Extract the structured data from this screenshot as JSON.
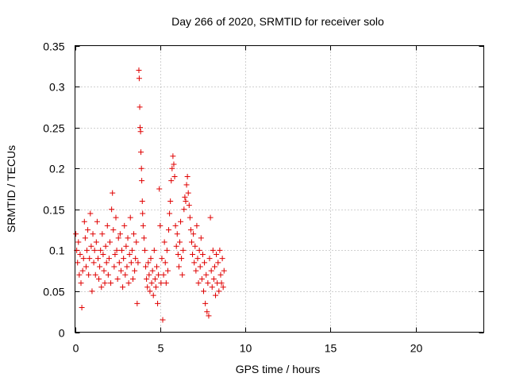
{
  "chart_data": {
    "type": "scatter",
    "title": "Day 266 of 2020, SRMTID for receiver solo",
    "xlabel": "GPS time / hours",
    "ylabel": "SRMTID / TECUs",
    "xlim": [
      0,
      24
    ],
    "ylim": [
      0,
      0.35
    ],
    "xticks": [
      0,
      5,
      10,
      15,
      20
    ],
    "xtick_labels": [
      "0",
      "5",
      "10",
      "15",
      "20"
    ],
    "yticks": [
      0,
      0.05,
      0.1,
      0.15,
      0.2,
      0.25,
      0.3,
      0.35
    ],
    "ytick_labels": [
      "0",
      "0.05",
      "0.1",
      "0.15",
      "0.2",
      "0.25",
      "0.3",
      "0.35"
    ],
    "grid": true,
    "marker": "+",
    "color": "#e00000",
    "series": [
      {
        "name": "SRMTID",
        "points": [
          [
            0.05,
            0.12
          ],
          [
            0.1,
            0.1
          ],
          [
            0.15,
            0.085
          ],
          [
            0.2,
            0.11
          ],
          [
            0.25,
            0.07
          ],
          [
            0.3,
            0.095
          ],
          [
            0.35,
            0.06
          ],
          [
            0.4,
            0.03
          ],
          [
            0.45,
            0.075
          ],
          [
            0.5,
            0.09
          ],
          [
            0.55,
            0.135
          ],
          [
            0.6,
            0.115
          ],
          [
            0.65,
            0.08
          ],
          [
            0.7,
            0.1
          ],
          [
            0.75,
            0.125
          ],
          [
            0.8,
            0.07
          ],
          [
            0.85,
            0.09
          ],
          [
            0.9,
            0.145
          ],
          [
            0.95,
            0.105
          ],
          [
            1.0,
            0.05
          ],
          [
            1.05,
            0.12
          ],
          [
            1.1,
            0.085
          ],
          [
            1.15,
            0.1
          ],
          [
            1.2,
            0.07
          ],
          [
            1.25,
            0.11
          ],
          [
            1.3,
            0.135
          ],
          [
            1.35,
            0.09
          ],
          [
            1.4,
            0.065
          ],
          [
            1.45,
            0.08
          ],
          [
            1.5,
            0.1
          ],
          [
            1.55,
            0.055
          ],
          [
            1.6,
            0.12
          ],
          [
            1.65,
            0.095
          ],
          [
            1.7,
            0.075
          ],
          [
            1.75,
            0.06
          ],
          [
            1.8,
            0.105
          ],
          [
            1.85,
            0.085
          ],
          [
            1.9,
            0.13
          ],
          [
            1.95,
            0.07
          ],
          [
            2.0,
            0.09
          ],
          [
            2.05,
            0.11
          ],
          [
            2.1,
            0.06
          ],
          [
            2.15,
            0.15
          ],
          [
            2.2,
            0.17
          ],
          [
            2.25,
            0.125
          ],
          [
            2.3,
            0.08
          ],
          [
            2.35,
            0.095
          ],
          [
            2.4,
            0.14
          ],
          [
            2.45,
            0.1
          ],
          [
            2.5,
            0.065
          ],
          [
            2.55,
            0.115
          ],
          [
            2.6,
            0.085
          ],
          [
            2.65,
            0.12
          ],
          [
            2.7,
            0.075
          ],
          [
            2.75,
            0.1
          ],
          [
            2.8,
            0.055
          ],
          [
            2.85,
            0.09
          ],
          [
            2.9,
            0.13
          ],
          [
            2.95,
            0.07
          ],
          [
            3.0,
            0.105
          ],
          [
            3.05,
            0.08
          ],
          [
            3.1,
            0.115
          ],
          [
            3.15,
            0.06
          ],
          [
            3.2,
            0.095
          ],
          [
            3.25,
            0.14
          ],
          [
            3.3,
            0.085
          ],
          [
            3.35,
            0.1
          ],
          [
            3.4,
            0.065
          ],
          [
            3.45,
            0.12
          ],
          [
            3.5,
            0.075
          ],
          [
            3.55,
            0.09
          ],
          [
            3.6,
            0.11
          ],
          [
            3.65,
            0.035
          ],
          [
            3.7,
            0.085
          ],
          [
            3.75,
            0.32
          ],
          [
            3.77,
            0.31
          ],
          [
            3.8,
            0.275
          ],
          [
            3.82,
            0.25
          ],
          [
            3.85,
            0.245
          ],
          [
            3.87,
            0.22
          ],
          [
            3.9,
            0.2
          ],
          [
            3.92,
            0.185
          ],
          [
            3.95,
            0.16
          ],
          [
            3.97,
            0.145
          ],
          [
            4.0,
            0.13
          ],
          [
            4.05,
            0.115
          ],
          [
            4.1,
            0.1
          ],
          [
            4.15,
            0.08
          ],
          [
            4.2,
            0.065
          ],
          [
            4.25,
            0.055
          ],
          [
            4.3,
            0.085
          ],
          [
            4.35,
            0.07
          ],
          [
            4.4,
            0.05
          ],
          [
            4.45,
            0.09
          ],
          [
            4.5,
            0.06
          ],
          [
            4.55,
            0.075
          ],
          [
            4.6,
            0.045
          ],
          [
            4.65,
            0.1
          ],
          [
            4.7,
            0.065
          ],
          [
            4.75,
            0.055
          ],
          [
            4.8,
            0.08
          ],
          [
            4.85,
            0.035
          ],
          [
            4.9,
            0.07
          ],
          [
            4.95,
            0.175
          ],
          [
            5.0,
            0.13
          ],
          [
            5.05,
            0.06
          ],
          [
            5.1,
            0.09
          ],
          [
            5.15,
            0.015
          ],
          [
            5.2,
            0.07
          ],
          [
            5.25,
            0.11
          ],
          [
            5.3,
            0.085
          ],
          [
            5.35,
            0.06
          ],
          [
            5.4,
            0.1
          ],
          [
            5.45,
            0.075
          ],
          [
            5.5,
            0.125
          ],
          [
            5.55,
            0.145
          ],
          [
            5.6,
            0.16
          ],
          [
            5.65,
            0.185
          ],
          [
            5.7,
            0.2
          ],
          [
            5.75,
            0.215
          ],
          [
            5.8,
            0.205
          ],
          [
            5.85,
            0.19
          ],
          [
            5.9,
            0.13
          ],
          [
            5.95,
            0.105
          ],
          [
            6.0,
            0.12
          ],
          [
            6.05,
            0.095
          ],
          [
            6.1,
            0.08
          ],
          [
            6.15,
            0.11
          ],
          [
            6.2,
            0.135
          ],
          [
            6.25,
            0.09
          ],
          [
            6.3,
            0.07
          ],
          [
            6.35,
            0.1
          ],
          [
            6.4,
            0.15
          ],
          [
            6.45,
            0.165
          ],
          [
            6.5,
            0.16
          ],
          [
            6.55,
            0.18
          ],
          [
            6.6,
            0.19
          ],
          [
            6.65,
            0.17
          ],
          [
            6.7,
            0.155
          ],
          [
            6.75,
            0.14
          ],
          [
            6.8,
            0.125
          ],
          [
            6.85,
            0.11
          ],
          [
            6.9,
            0.095
          ],
          [
            6.95,
            0.12
          ],
          [
            7.0,
            0.085
          ],
          [
            7.05,
            0.105
          ],
          [
            7.1,
            0.075
          ],
          [
            7.15,
            0.13
          ],
          [
            7.2,
            0.09
          ],
          [
            7.25,
            0.06
          ],
          [
            7.3,
            0.1
          ],
          [
            7.35,
            0.08
          ],
          [
            7.4,
            0.115
          ],
          [
            7.45,
            0.065
          ],
          [
            7.5,
            0.095
          ],
          [
            7.55,
            0.05
          ],
          [
            7.6,
            0.085
          ],
          [
            7.65,
            0.035
          ],
          [
            7.7,
            0.07
          ],
          [
            7.75,
            0.025
          ],
          [
            7.8,
            0.06
          ],
          [
            7.85,
            0.02
          ],
          [
            7.9,
            0.09
          ],
          [
            7.95,
            0.14
          ],
          [
            8.0,
            0.075
          ],
          [
            8.05,
            0.055
          ],
          [
            8.1,
            0.1
          ],
          [
            8.15,
            0.065
          ],
          [
            8.2,
            0.08
          ],
          [
            8.25,
            0.045
          ],
          [
            8.3,
            0.095
          ],
          [
            8.35,
            0.06
          ],
          [
            8.4,
            0.085
          ],
          [
            8.45,
            0.05
          ],
          [
            8.5,
            0.1
          ],
          [
            8.55,
            0.07
          ],
          [
            8.6,
            0.06
          ],
          [
            8.65,
            0.09
          ],
          [
            8.7,
            0.055
          ],
          [
            8.75,
            0.075
          ]
        ]
      }
    ]
  }
}
